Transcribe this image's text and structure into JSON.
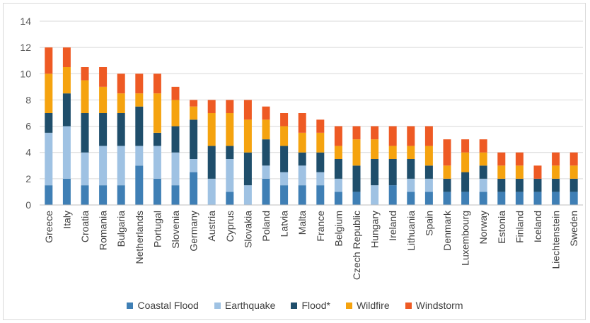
{
  "chart_data": {
    "type": "bar",
    "stacked": true,
    "title": "",
    "xlabel": "",
    "ylabel": "",
    "ylim": [
      0,
      14
    ],
    "yticks": [
      0,
      2,
      4,
      6,
      8,
      10,
      12,
      14
    ],
    "grid": true,
    "legend_position": "bottom",
    "categories": [
      "Greece",
      "Italy",
      "Croatia",
      "Romania",
      "Bulgaria",
      "Netherlands",
      "Portugal",
      "Slovenia",
      "Germany",
      "Austria",
      "Cyprus",
      "Slovakia",
      "Poland",
      "Latvia",
      "Malta",
      "France",
      "Belgium",
      "Czech Republic",
      "Hungary",
      "Ireland",
      "Lithuania",
      "Spain",
      "Denmark",
      "Luxembourg",
      "Norway",
      "Estonia",
      "Finland",
      "Iceland",
      "Liechtenstein",
      "Sweden"
    ],
    "series": [
      {
        "name": "Coastal Flood",
        "color": "#3f7fb5",
        "values": [
          1.5,
          2,
          1.5,
          1.5,
          1.5,
          3,
          2,
          1.5,
          2.5,
          0,
          1,
          0,
          2,
          1.5,
          1.5,
          1.5,
          1,
          1,
          0,
          1.5,
          1,
          1,
          1,
          1,
          1,
          1,
          1,
          1,
          1,
          1
        ]
      },
      {
        "name": "Earthquake",
        "color": "#9fc2e3",
        "values": [
          4,
          4,
          2.5,
          3,
          3,
          1.5,
          2.5,
          2.5,
          1,
          2,
          2.5,
          1.5,
          1,
          1,
          1.5,
          1,
          1,
          0,
          1.5,
          0,
          1,
          1,
          0,
          0,
          1,
          0,
          0,
          0,
          0,
          0
        ]
      },
      {
        "name": "Flood*",
        "color": "#1f4e6b",
        "values": [
          1.5,
          2.5,
          3,
          2.5,
          2.5,
          3,
          1,
          2,
          3,
          2.5,
          1,
          2.5,
          2,
          2,
          1,
          1.5,
          1.5,
          2,
          2,
          2,
          1.5,
          1,
          1,
          1.5,
          1,
          1,
          1,
          1,
          1,
          1
        ]
      },
      {
        "name": "Wildfire",
        "color": "#f5a30f",
        "values": [
          3,
          2,
          2.5,
          2,
          1.5,
          1,
          3,
          2,
          1,
          2.5,
          2.5,
          2.5,
          1.5,
          1.5,
          1.5,
          1.5,
          1,
          2,
          1.5,
          1,
          1,
          1.5,
          1,
          1.5,
          1,
          1,
          1,
          0,
          1,
          1
        ]
      },
      {
        "name": "Windstorm",
        "color": "#ee5a24",
        "values": [
          2,
          1.5,
          1,
          1.5,
          1.5,
          1.5,
          1.5,
          1,
          0.5,
          1,
          1,
          1.5,
          1,
          1,
          1.5,
          1,
          1.5,
          1,
          1,
          1.5,
          1.5,
          1.5,
          2,
          1,
          1,
          1,
          1,
          1,
          1,
          1
        ]
      }
    ]
  }
}
